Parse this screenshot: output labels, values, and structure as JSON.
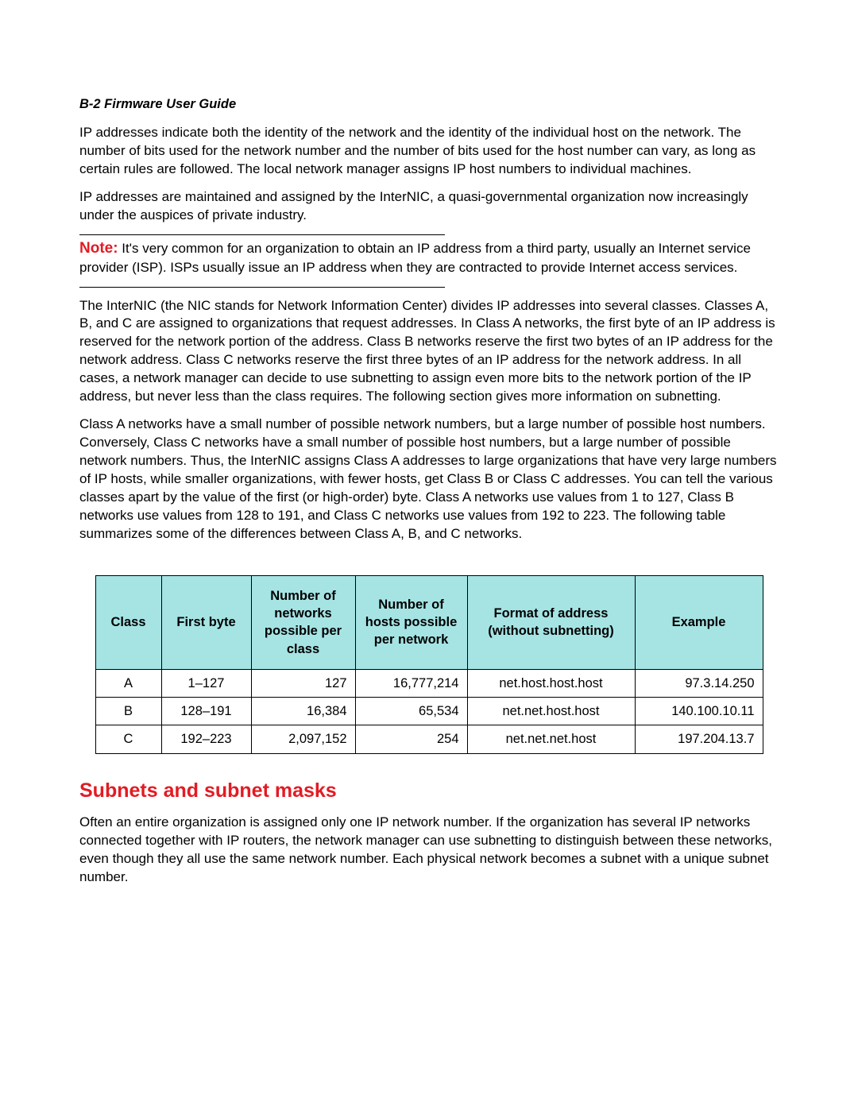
{
  "header": "B-2  Firmware User Guide",
  "p1": "IP addresses indicate both the identity of the network and the identity of the individual host on the network. The number of bits used for the network number and the number of bits used for the host number can vary, as long as certain rules are followed. The local network manager assigns IP host numbers to individual machines.",
  "p2": "IP addresses are maintained and assigned by the InterNIC, a quasi-governmental organization now increasingly under the auspices of private industry.",
  "note": {
    "label": "Note:",
    "text": " It's very common for an organization to obtain an IP address from a third party, usually an Internet service provider (ISP). ISPs usually issue an IP address when they are contracted to provide Internet access services."
  },
  "p3": "The InterNIC (the NIC stands for Network Information Center) divides IP addresses into several classes. Classes A, B, and C are assigned to organizations that request addresses. In Class A networks, the first byte of an IP address is reserved for the network portion of the address. Class B networks reserve the first two bytes of an IP address for the network address. Class C networks reserve the first three bytes of an IP address for the network address. In all cases, a network manager can decide to use subnetting to assign even more bits to the network portion of the IP address, but never less than the class requires. The following section gives more information on subnetting.",
  "p4": "Class A networks have a small number of possible network numbers, but a large number of possible host numbers. Conversely, Class C networks have a small number of possible host numbers, but a large number of possible network numbers. Thus, the InterNIC assigns Class A addresses to large organizations that have very large numbers of IP hosts, while smaller organizations, with fewer hosts, get Class B or Class C addresses. You can tell the various classes apart by the value of the first (or high-order) byte. Class A networks use values from 1 to 127, Class B networks use values from 128 to 191, and Class C networks use values from 192 to 223. The following table summarizes some of the differences between Class A, B, and C networks.",
  "table": {
    "columns": [
      "Class",
      "First byte",
      "Number of networks possible per class",
      "Number of hosts possible per network",
      "Format of address (without subnetting)",
      "Example"
    ],
    "rows": [
      [
        "A",
        "1–127",
        "127",
        "16,777,214",
        "net.host.host.host",
        "97.3.14.250"
      ],
      [
        "B",
        "128–191",
        "16,384",
        "65,534",
        "net.net.host.host",
        "140.100.10.11"
      ],
      [
        "C",
        "192–223",
        "2,097,152",
        "254",
        "net.net.net.host",
        "197.204.13.7"
      ]
    ],
    "header_bg": "#a6e4e4",
    "border_color": "#000000",
    "font_size": 16.5
  },
  "section_title": "Subnets and subnet masks",
  "p5": "Often an entire organization is assigned only one IP network number. If the organization has several IP networks connected together with IP routers, the network manager can use subnetting to distinguish between these networks, even though they all use the same network number. Each physical network becomes a subnet with a unique subnet number.",
  "colors": {
    "accent": "#e31b23",
    "text": "#000000",
    "background": "#ffffff"
  }
}
